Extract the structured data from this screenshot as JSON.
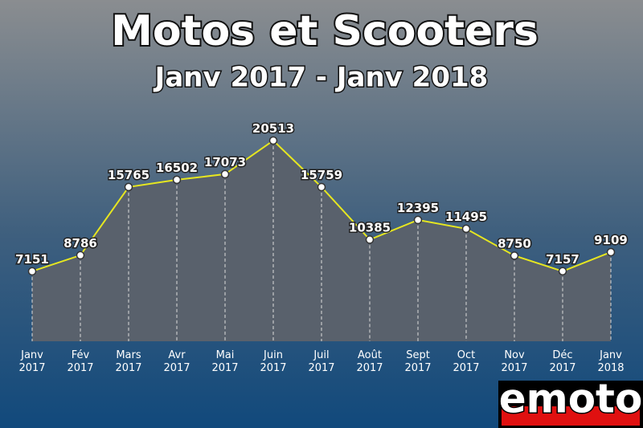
{
  "chart_data": {
    "type": "line",
    "title": "Motos et Scooters",
    "subtitle": "Janv 2017 - Janv 2018",
    "categories": [
      "Janv 2017",
      "Fév 2017",
      "Mars 2017",
      "Avr 2017",
      "Mai 2017",
      "Juin 2017",
      "Juil 2017",
      "Août 2017",
      "Sept 2017",
      "Oct 2017",
      "Nov 2017",
      "Déc 2017",
      "Janv 2018"
    ],
    "values": [
      7151,
      8786,
      15765,
      16502,
      17073,
      20513,
      15759,
      10385,
      12395,
      11495,
      8750,
      7157,
      9109
    ],
    "color": "#e6e620",
    "area_color": "#59616c",
    "logo": "emoto"
  }
}
